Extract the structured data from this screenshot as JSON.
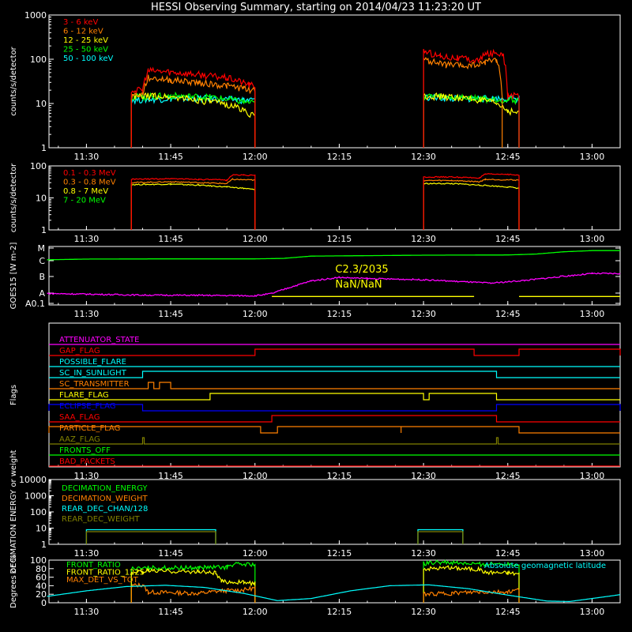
{
  "page": {
    "title": "HESSI Observing Summary, starting on 2014/04/23 11:23:20 UT"
  },
  "time_axis": {
    "labels": [
      "11:30",
      "11:45",
      "12:00",
      "12:15",
      "12:30",
      "12:45",
      "13:00"
    ]
  },
  "chart_data": [
    {
      "id": "lightcurve_low",
      "type": "line",
      "ylabel": "counts/s/detector",
      "yscale": "log",
      "ylim": [
        1,
        1000
      ],
      "ytick_labels": [
        "1",
        "10",
        "100",
        "1000"
      ],
      "legend": [
        "3 - 6 keV",
        "6 - 12 keV",
        "12 - 25 keV",
        "25 - 50 keV",
        "50 - 100 keV"
      ],
      "legend_placement": "top-left",
      "series": [
        {
          "name": "3 - 6 keV",
          "color": "#ff0000",
          "segments": [
            {
              "x": [
                "11:38",
                "11:40",
                "11:41",
                "11:45",
                "11:50",
                "11:55",
                "11:58",
                "11:59",
                "12:00"
              ],
              "y": [
                20,
                20,
                55,
                52,
                45,
                38,
                30,
                26,
                26
              ]
            },
            {
              "x": [
                "12:30",
                "12:31",
                "12:33",
                "12:36",
                "12:38",
                "12:40",
                "12:41",
                "12:42",
                "12:44",
                "12:45",
                "12:47"
              ],
              "y": [
                160,
                140,
                120,
                110,
                100,
                95,
                130,
                140,
                140,
                15,
                15
              ]
            }
          ]
        },
        {
          "name": "6 - 12 keV",
          "color": "#ff8000",
          "segments": [
            {
              "x": [
                "11:38",
                "11:40",
                "11:41",
                "11:45",
                "11:50",
                "11:55",
                "11:58",
                "12:00"
              ],
              "y": [
                15,
                16,
                38,
                34,
                30,
                25,
                22,
                20
              ]
            },
            {
              "x": [
                "12:30",
                "12:31",
                "12:34",
                "12:37",
                "12:40",
                "12:41",
                "12:43",
                "12:44"
              ],
              "y": [
                100,
                90,
                75,
                70,
                75,
                90,
                100,
                15
              ]
            }
          ]
        },
        {
          "name": "12 - 25 keV",
          "color": "#ffff00",
          "segments": [
            {
              "x": [
                "11:38",
                "11:42",
                "11:48",
                "11:52",
                "11:56",
                "11:58",
                "12:00"
              ],
              "y": [
                14,
                15,
                13,
                11,
                9,
                7,
                5
              ]
            },
            {
              "x": [
                "12:30",
                "12:35",
                "12:40",
                "12:43",
                "12:45",
                "12:47"
              ],
              "y": [
                15,
                14,
                12,
                10,
                7,
                6
              ]
            }
          ]
        },
        {
          "name": "25 - 50 keV",
          "color": "#00ff00",
          "segments": [
            {
              "x": [
                "11:38",
                "11:45",
                "11:52",
                "11:58",
                "12:00"
              ],
              "y": [
                14,
                15,
                14,
                11,
                10
              ]
            },
            {
              "x": [
                "12:30",
                "12:35",
                "12:40",
                "12:45",
                "12:47"
              ],
              "y": [
                15,
                14,
                13,
                12,
                12
              ]
            }
          ]
        },
        {
          "name": "50 - 100 keV",
          "color": "#00ffff",
          "segments": [
            {
              "x": [
                "11:38",
                "11:45",
                "11:52",
                "11:58",
                "12:00"
              ],
              "y": [
                12,
                13,
                13,
                12,
                12
              ]
            },
            {
              "x": [
                "12:30",
                "12:35",
                "12:40",
                "12:45",
                "12:47"
              ],
              "y": [
                14,
                13,
                13,
                13,
                13
              ]
            }
          ]
        }
      ]
    },
    {
      "id": "lightcurve_high",
      "type": "line",
      "ylabel": "counts/s/detector",
      "yscale": "log",
      "ylim": [
        1,
        100
      ],
      "ytick_labels": [
        "1",
        "10",
        "100"
      ],
      "legend": [
        "0.1 - 0.3 MeV",
        "0.3 - 0.8 MeV",
        "0.8 - 7 MeV",
        "7 - 20 MeV"
      ],
      "legend_placement": "top-left",
      "series": [
        {
          "name": "0.1 - 0.3 MeV",
          "color": "#ff0000",
          "segments": [
            {
              "x": [
                "11:38",
                "11:45",
                "11:50",
                "11:55",
                "11:56",
                "11:58",
                "12:00"
              ],
              "y": [
                38,
                40,
                38,
                36,
                52,
                52,
                50
              ]
            },
            {
              "x": [
                "12:30",
                "12:35",
                "12:40",
                "12:41",
                "12:45",
                "12:47"
              ],
              "y": [
                45,
                45,
                42,
                55,
                55,
                50
              ]
            }
          ]
        },
        {
          "name": "0.3 - 0.8 MeV",
          "color": "#ff8000",
          "segments": [
            {
              "x": [
                "11:38",
                "11:45",
                "11:50",
                "11:55",
                "11:56",
                "12:00"
              ],
              "y": [
                30,
                32,
                30,
                28,
                38,
                36
              ]
            },
            {
              "x": [
                "12:30",
                "12:35",
                "12:40",
                "12:41",
                "12:47"
              ],
              "y": [
                35,
                35,
                32,
                38,
                36
              ]
            }
          ]
        },
        {
          "name": "0.8 - 7 MeV",
          "color": "#ffff00",
          "segments": [
            {
              "x": [
                "11:38",
                "11:45",
                "11:50",
                "11:55",
                "11:58",
                "12:00"
              ],
              "y": [
                26,
                27,
                25,
                22,
                20,
                18
              ]
            },
            {
              "x": [
                "12:30",
                "12:35",
                "12:40",
                "12:45",
                "12:47"
              ],
              "y": [
                28,
                28,
                25,
                22,
                20
              ]
            }
          ]
        },
        {
          "name": "7 - 20 MeV",
          "color": "#00ff00",
          "segments": []
        }
      ]
    },
    {
      "id": "goes",
      "type": "line",
      "ylabel": "GOES15 [W m-2]",
      "yscale": "categorical-log",
      "ytick_labels": [
        "A0.1",
        "A",
        "B",
        "C",
        "M"
      ],
      "annotations": [
        "C2.3/2035",
        "NaN/NaN"
      ],
      "series": [
        {
          "name": "GOES low",
          "color": "#ff00ff",
          "x": [
            "11:23",
            "11:30",
            "11:40",
            "11:50",
            "12:00",
            "12:03",
            "12:06",
            "12:10",
            "12:15",
            "12:20",
            "12:30",
            "12:38",
            "12:42",
            "12:48",
            "12:55",
            "13:00",
            "13:05"
          ],
          "y": [
            0.25,
            0.22,
            0.18,
            0.17,
            0.15,
            0.25,
            0.5,
            0.8,
            0.95,
            0.9,
            0.85,
            0.75,
            0.7,
            0.82,
            1.0,
            1.12,
            1.12
          ]
        },
        {
          "name": "GOES high",
          "color": "#00ff00",
          "x": [
            "11:23",
            "11:30",
            "11:45",
            "12:00",
            "12:05",
            "12:10",
            "12:30",
            "12:45",
            "12:50",
            "12:55",
            "13:00",
            "13:05"
          ],
          "y": [
            1.72,
            1.75,
            1.76,
            1.76,
            1.78,
            1.88,
            1.92,
            1.93,
            1.97,
            2.07,
            2.12,
            2.12
          ]
        },
        {
          "name": "class marker",
          "color": "#ffff00",
          "segments": [
            {
              "x": [
                "12:03",
                "12:39"
              ],
              "y": [
                0.12,
                0.12
              ]
            },
            {
              "x": [
                "12:47",
                "13:05"
              ],
              "y": [
                0.12,
                0.12
              ]
            }
          ]
        }
      ]
    },
    {
      "id": "flags",
      "type": "timeline",
      "ylabel": "Flags",
      "flags": [
        {
          "name": "ATTENUATOR_STATE",
          "color": "#ff00ff",
          "on": []
        },
        {
          "name": "GAP_FLAG",
          "color": "#ff0000",
          "on": [
            [
              "12:00",
              "12:39"
            ],
            [
              "12:47",
              "13:05"
            ]
          ]
        },
        {
          "name": "POSSIBLE_FLARE",
          "color": "#00ffff",
          "on": []
        },
        {
          "name": "SC_IN_SUNLIGHT",
          "color": "#00ffff",
          "on": [
            [
              "11:40",
              "12:43"
            ]
          ]
        },
        {
          "name": "SC_TRANSMITTER",
          "color": "#ff8000",
          "on": [
            [
              "11:41",
              "11:42"
            ],
            [
              "11:43",
              "11:45"
            ]
          ]
        },
        {
          "name": "FLARE_FLAG",
          "color": "#ffff00",
          "on": [
            [
              "11:52",
              "12:30"
            ],
            [
              "12:31",
              "12:43"
            ]
          ]
        },
        {
          "name": "ECLIPSE_FLAG",
          "color": "#0000ff",
          "on": [
            [
              "11:23",
              "11:40"
            ],
            [
              "12:43",
              "13:05"
            ]
          ]
        },
        {
          "name": "SAA_FLAG",
          "color": "#ff0000",
          "on": [
            [
              "12:03",
              "12:43"
            ]
          ]
        },
        {
          "name": "PARTICLE_FLAG",
          "color": "#ff8000",
          "on": [
            [
              "11:23",
              "12:01"
            ],
            [
              "12:04",
              "12:26"
            ],
            [
              "12:26",
              "12:47"
            ]
          ]
        },
        {
          "name": "AAZ_FLAG",
          "color": "#808000",
          "on": [
            [
              "11:40",
              "11:40"
            ],
            [
              "12:43",
              "12:43"
            ]
          ]
        },
        {
          "name": "FRONTS_OFF",
          "color": "#00ff00",
          "on": []
        },
        {
          "name": "BAD_PACKETS",
          "color": "#ff0000",
          "on": []
        }
      ]
    },
    {
      "id": "decimation",
      "type": "line",
      "ylabel": "DECIMATION ENERGY or weight",
      "yscale": "log",
      "ylim": [
        1,
        10000
      ],
      "ytick_labels": [
        "1",
        "10",
        "100",
        "1000",
        "10000"
      ],
      "legend": [
        "DECIMATION_ENERGY",
        "DECIMATION_WEIGHT",
        "REAR_DEC_CHAN/128",
        "REAR_DEC_WEIGHT"
      ],
      "legend_placement": "top-left",
      "series": [
        {
          "name": "REAR_DEC_CHAN/128",
          "color": "#00ffff",
          "segments": [
            {
              "x": [
                "11:30",
                "11:30",
                "11:53",
                "11:53"
              ],
              "y": [
                1,
                8,
                8,
                1
              ]
            },
            {
              "x": [
                "12:29",
                "12:29",
                "12:37",
                "12:37"
              ],
              "y": [
                1,
                8,
                8,
                1
              ]
            }
          ]
        },
        {
          "name": "REAR_DEC_WEIGHT",
          "color": "#808000",
          "segments": [
            {
              "x": [
                "11:30",
                "11:30",
                "11:53",
                "11:53"
              ],
              "y": [
                1,
                6,
                6,
                1
              ]
            },
            {
              "x": [
                "12:29",
                "12:29",
                "12:37",
                "12:37"
              ],
              "y": [
                1,
                6,
                6,
                1
              ]
            }
          ]
        }
      ]
    },
    {
      "id": "ratios",
      "type": "line",
      "ylabel": "Degrees or %",
      "ylim": [
        0,
        100
      ],
      "ytick_labels": [
        "0",
        "20",
        "40",
        "60",
        "80",
        "100"
      ],
      "legend": [
        "FRONT_RATIO",
        "FRONT_RATIO_1225",
        "MAX_DET_VS_TOT"
      ],
      "legend_placement": "top-left",
      "annotation": "Absolute geomagnetic latitude",
      "series": [
        {
          "name": "FRONT_RATIO",
          "color": "#00ff00",
          "segments": [
            {
              "x": [
                "11:38",
                "11:40",
                "11:41",
                "11:50",
                "11:51",
                "11:55",
                "11:56",
                "12:00"
              ],
              "y": [
                80,
                80,
                82,
                82,
                83,
                83,
                90,
                90
              ]
            },
            {
              "x": [
                "12:30",
                "12:33",
                "12:36",
                "12:40",
                "12:45",
                "12:47"
              ],
              "y": [
                92,
                95,
                93,
                90,
                92,
                90
              ]
            }
          ]
        },
        {
          "name": "FRONT_RATIO_1225",
          "color": "#ffff00",
          "segments": [
            {
              "x": [
                "11:38",
                "11:40",
                "11:41",
                "11:50",
                "11:53",
                "11:54",
                "11:58",
                "12:00"
              ],
              "y": [
                70,
                72,
                75,
                73,
                70,
                50,
                48,
                45
              ]
            },
            {
              "x": [
                "12:30",
                "12:35",
                "12:40",
                "12:41",
                "12:45",
                "12:47"
              ],
              "y": [
                80,
                82,
                78,
                72,
                70,
                68
              ]
            }
          ]
        },
        {
          "name": "MAX_DET_VS_TOT",
          "color": "#ff8000",
          "segments": [
            {
              "x": [
                "11:38",
                "11:40",
                "11:41",
                "11:50",
                "11:54",
                "11:58",
                "12:00"
              ],
              "y": [
                40,
                42,
                25,
                22,
                28,
                30,
                35
              ]
            },
            {
              "x": [
                "12:30",
                "12:35",
                "12:40",
                "12:45",
                "12:47"
              ],
              "y": [
                20,
                22,
                25,
                25,
                30
              ]
            }
          ]
        },
        {
          "name": "Absolute geomagnetic latitude",
          "color": "#00ffff",
          "x": [
            "11:23",
            "11:30",
            "11:37",
            "11:44",
            "11:51",
            "11:58",
            "12:04",
            "12:10",
            "12:17",
            "12:24",
            "12:31",
            "12:38",
            "12:45",
            "12:52",
            "12:56",
            "13:00",
            "13:05"
          ],
          "y": [
            15,
            28,
            38,
            41,
            36,
            22,
            5,
            10,
            28,
            40,
            42,
            33,
            18,
            4,
            3,
            10,
            19
          ]
        }
      ]
    }
  ]
}
